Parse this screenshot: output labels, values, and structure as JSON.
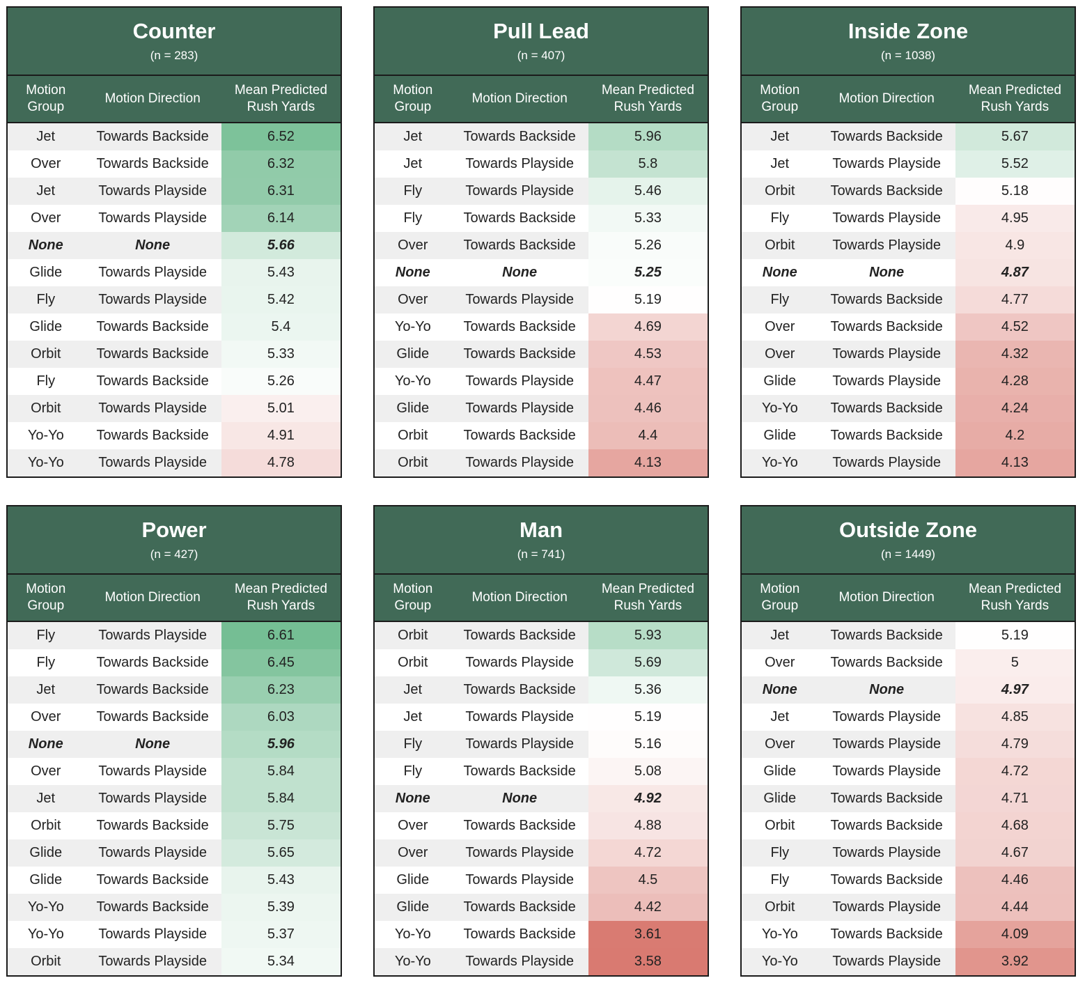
{
  "column_headers": {
    "group": "Motion Group",
    "direction": "Motion Direction",
    "yards": "Mean Predicted Rush Yards"
  },
  "colors": {
    "header_bg": "#416a57",
    "high": "#75be94",
    "neutral": "#ffffff",
    "low": "#d97a71"
  },
  "chart_data": [
    {
      "type": "table",
      "title": "Counter",
      "subtitle": "(n = 283)",
      "rows": [
        {
          "group": "Jet",
          "direction": "Towards Backside",
          "yards": 6.52
        },
        {
          "group": "Over",
          "direction": "Towards Backside",
          "yards": 6.32
        },
        {
          "group": "Jet",
          "direction": "Towards Playside",
          "yards": 6.31
        },
        {
          "group": "Over",
          "direction": "Towards Playside",
          "yards": 6.14
        },
        {
          "group": "None",
          "direction": "None",
          "yards": 5.66
        },
        {
          "group": "Glide",
          "direction": "Towards Playside",
          "yards": 5.43
        },
        {
          "group": "Fly",
          "direction": "Towards Playside",
          "yards": 5.42
        },
        {
          "group": "Glide",
          "direction": "Towards Backside",
          "yards": 5.4
        },
        {
          "group": "Orbit",
          "direction": "Towards Backside",
          "yards": 5.33
        },
        {
          "group": "Fly",
          "direction": "Towards Backside",
          "yards": 5.26
        },
        {
          "group": "Orbit",
          "direction": "Towards Playside",
          "yards": 5.01
        },
        {
          "group": "Yo-Yo",
          "direction": "Towards Backside",
          "yards": 4.91
        },
        {
          "group": "Yo-Yo",
          "direction": "Towards Playside",
          "yards": 4.78
        }
      ]
    },
    {
      "type": "table",
      "title": "Pull Lead",
      "subtitle": "(n = 407)",
      "rows": [
        {
          "group": "Jet",
          "direction": "Towards Backside",
          "yards": 5.96
        },
        {
          "group": "Jet",
          "direction": "Towards Playside",
          "yards": 5.8
        },
        {
          "group": "Fly",
          "direction": "Towards Playside",
          "yards": 5.46
        },
        {
          "group": "Fly",
          "direction": "Towards Backside",
          "yards": 5.33
        },
        {
          "group": "Over",
          "direction": "Towards Backside",
          "yards": 5.26
        },
        {
          "group": "None",
          "direction": "None",
          "yards": 5.25
        },
        {
          "group": "Over",
          "direction": "Towards Playside",
          "yards": 5.19
        },
        {
          "group": "Yo-Yo",
          "direction": "Towards Backside",
          "yards": 4.69
        },
        {
          "group": "Glide",
          "direction": "Towards Backside",
          "yards": 4.53
        },
        {
          "group": "Yo-Yo",
          "direction": "Towards Playside",
          "yards": 4.47
        },
        {
          "group": "Glide",
          "direction": "Towards Playside",
          "yards": 4.46
        },
        {
          "group": "Orbit",
          "direction": "Towards Backside",
          "yards": 4.4
        },
        {
          "group": "Orbit",
          "direction": "Towards Playside",
          "yards": 4.13
        }
      ]
    },
    {
      "type": "table",
      "title": "Inside Zone",
      "subtitle": "(n = 1038)",
      "rows": [
        {
          "group": "Jet",
          "direction": "Towards Backside",
          "yards": 5.67
        },
        {
          "group": "Jet",
          "direction": "Towards Playside",
          "yards": 5.52
        },
        {
          "group": "Orbit",
          "direction": "Towards Backside",
          "yards": 5.18
        },
        {
          "group": "Fly",
          "direction": "Towards Playside",
          "yards": 4.95
        },
        {
          "group": "Orbit",
          "direction": "Towards Playside",
          "yards": 4.9
        },
        {
          "group": "None",
          "direction": "None",
          "yards": 4.87
        },
        {
          "group": "Fly",
          "direction": "Towards Backside",
          "yards": 4.77
        },
        {
          "group": "Over",
          "direction": "Towards Backside",
          "yards": 4.52
        },
        {
          "group": "Over",
          "direction": "Towards Playside",
          "yards": 4.32
        },
        {
          "group": "Glide",
          "direction": "Towards Playside",
          "yards": 4.28
        },
        {
          "group": "Yo-Yo",
          "direction": "Towards Backside",
          "yards": 4.24
        },
        {
          "group": "Glide",
          "direction": "Towards Backside",
          "yards": 4.2
        },
        {
          "group": "Yo-Yo",
          "direction": "Towards Playside",
          "yards": 4.13
        }
      ]
    },
    {
      "type": "table",
      "title": "Power",
      "subtitle": "(n = 427)",
      "rows": [
        {
          "group": "Fly",
          "direction": "Towards Playside",
          "yards": 6.61
        },
        {
          "group": "Fly",
          "direction": "Towards Backside",
          "yards": 6.45
        },
        {
          "group": "Jet",
          "direction": "Towards Backside",
          "yards": 6.23
        },
        {
          "group": "Over",
          "direction": "Towards Backside",
          "yards": 6.03
        },
        {
          "group": "None",
          "direction": "None",
          "yards": 5.96
        },
        {
          "group": "Over",
          "direction": "Towards Playside",
          "yards": 5.84
        },
        {
          "group": "Jet",
          "direction": "Towards Playside",
          "yards": 5.84
        },
        {
          "group": "Orbit",
          "direction": "Towards Backside",
          "yards": 5.75
        },
        {
          "group": "Glide",
          "direction": "Towards Playside",
          "yards": 5.65
        },
        {
          "group": "Glide",
          "direction": "Towards Backside",
          "yards": 5.43
        },
        {
          "group": "Yo-Yo",
          "direction": "Towards Backside",
          "yards": 5.39
        },
        {
          "group": "Yo-Yo",
          "direction": "Towards Playside",
          "yards": 5.37
        },
        {
          "group": "Orbit",
          "direction": "Towards Playside",
          "yards": 5.34
        }
      ]
    },
    {
      "type": "table",
      "title": "Man",
      "subtitle": "(n = 741)",
      "rows": [
        {
          "group": "Orbit",
          "direction": "Towards Backside",
          "yards": 5.93
        },
        {
          "group": "Orbit",
          "direction": "Towards Playside",
          "yards": 5.69
        },
        {
          "group": "Jet",
          "direction": "Towards Backside",
          "yards": 5.36
        },
        {
          "group": "Jet",
          "direction": "Towards Playside",
          "yards": 5.19
        },
        {
          "group": "Fly",
          "direction": "Towards Playside",
          "yards": 5.16
        },
        {
          "group": "Fly",
          "direction": "Towards Backside",
          "yards": 5.08
        },
        {
          "group": "None",
          "direction": "None",
          "yards": 4.92
        },
        {
          "group": "Over",
          "direction": "Towards Backside",
          "yards": 4.88
        },
        {
          "group": "Over",
          "direction": "Towards Playside",
          "yards": 4.72
        },
        {
          "group": "Glide",
          "direction": "Towards Playside",
          "yards": 4.5
        },
        {
          "group": "Glide",
          "direction": "Towards Backside",
          "yards": 4.42
        },
        {
          "group": "Yo-Yo",
          "direction": "Towards Backside",
          "yards": 3.61
        },
        {
          "group": "Yo-Yo",
          "direction": "Towards Playside",
          "yards": 3.58
        }
      ]
    },
    {
      "type": "table",
      "title": "Outside Zone",
      "subtitle": "(n = 1449)",
      "rows": [
        {
          "group": "Jet",
          "direction": "Towards Backside",
          "yards": 5.19
        },
        {
          "group": "Over",
          "direction": "Towards Backside",
          "yards": 5
        },
        {
          "group": "None",
          "direction": "None",
          "yards": 4.97
        },
        {
          "group": "Jet",
          "direction": "Towards Playside",
          "yards": 4.85
        },
        {
          "group": "Over",
          "direction": "Towards Playside",
          "yards": 4.79
        },
        {
          "group": "Glide",
          "direction": "Towards Playside",
          "yards": 4.72
        },
        {
          "group": "Glide",
          "direction": "Towards Backside",
          "yards": 4.71
        },
        {
          "group": "Orbit",
          "direction": "Towards Backside",
          "yards": 4.68
        },
        {
          "group": "Fly",
          "direction": "Towards Playside",
          "yards": 4.67
        },
        {
          "group": "Fly",
          "direction": "Towards Backside",
          "yards": 4.46
        },
        {
          "group": "Orbit",
          "direction": "Towards Playside",
          "yards": 4.44
        },
        {
          "group": "Yo-Yo",
          "direction": "Towards Backside",
          "yards": 4.09
        },
        {
          "group": "Yo-Yo",
          "direction": "Towards Playside",
          "yards": 3.92
        }
      ]
    }
  ]
}
